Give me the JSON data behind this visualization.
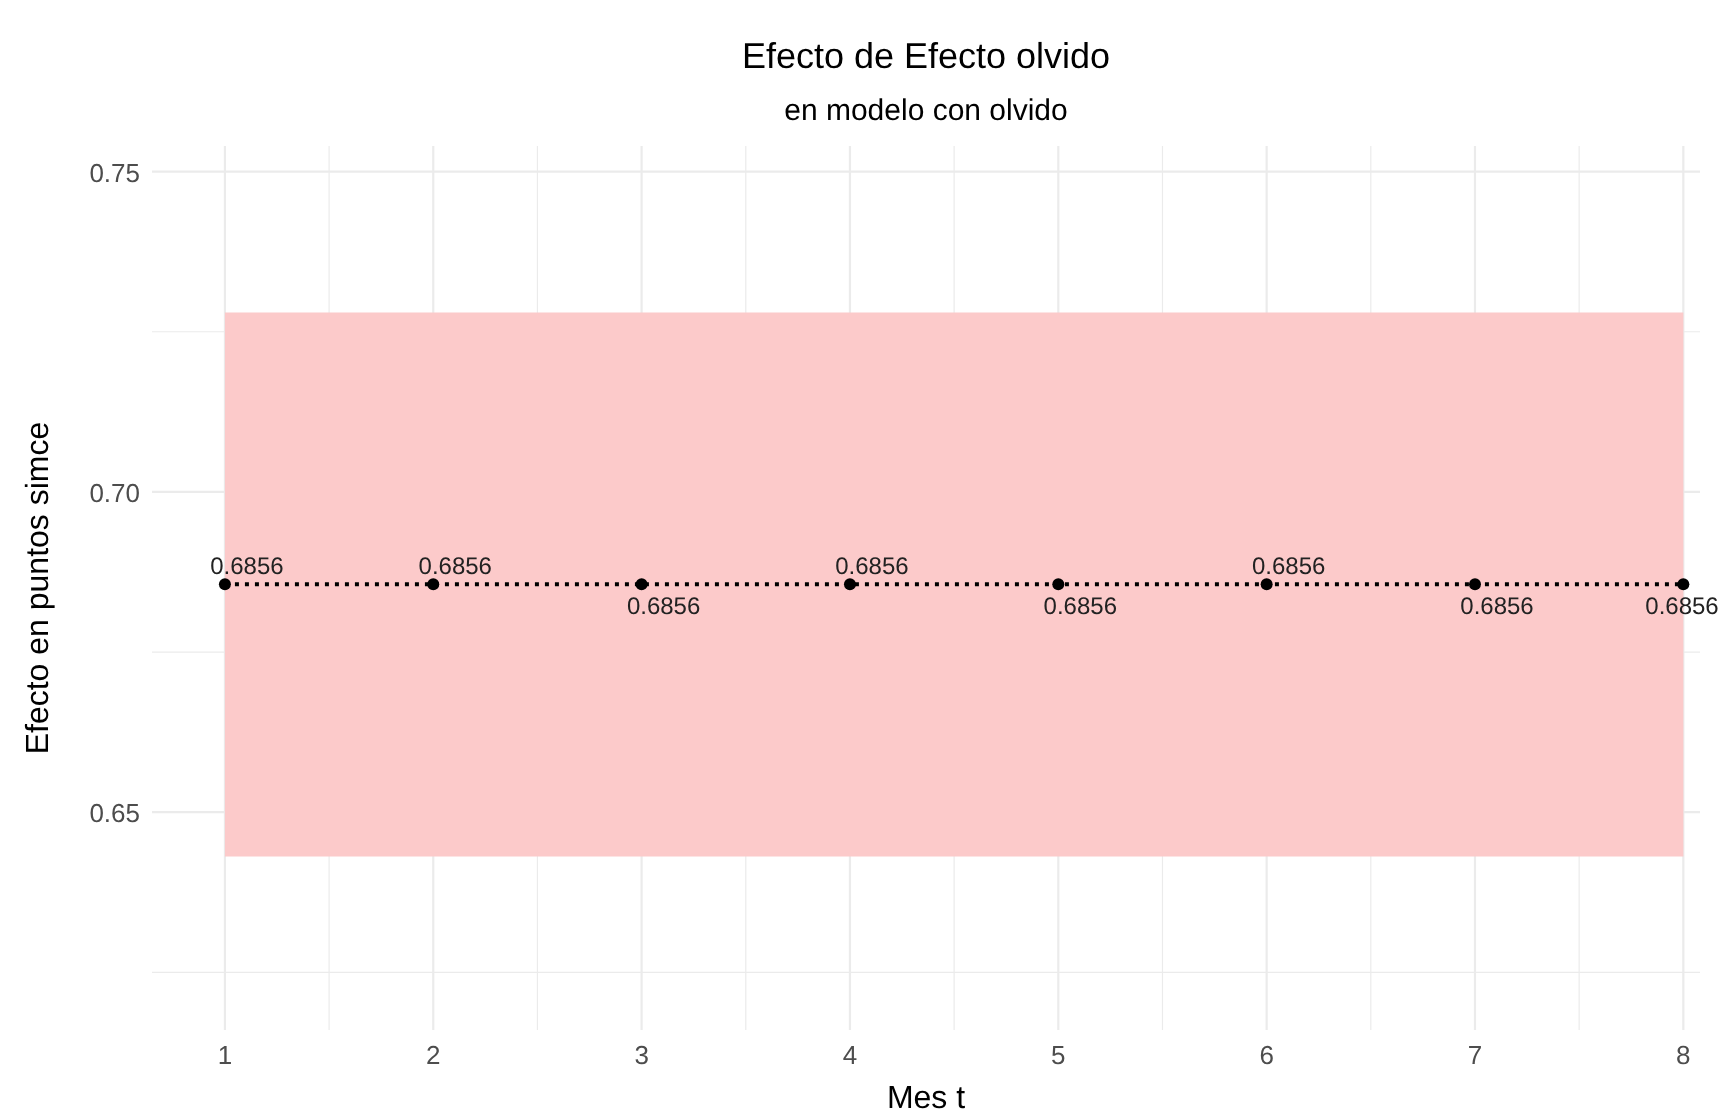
{
  "chart_data": {
    "type": "line",
    "title": "Efecto de Efecto olvido",
    "subtitle": "en modelo con olvido",
    "xlabel": "Mes t",
    "ylabel": "Efecto en puntos simce",
    "x": [
      1,
      2,
      3,
      4,
      5,
      6,
      7,
      8
    ],
    "series": [
      {
        "color": "#000000",
        "values": [
          0.6856,
          0.6856,
          0.6856,
          0.6856,
          0.6856,
          0.6856,
          0.6856,
          0.6856
        ],
        "lower": [
          0.6431,
          0.6431,
          0.6431,
          0.6431,
          0.6431,
          0.6431,
          0.6431,
          0.6431
        ],
        "upper": [
          0.728,
          0.728,
          0.728,
          0.728,
          0.728,
          0.728,
          0.728,
          0.728
        ]
      }
    ],
    "data_labels": true,
    "marker": "circle",
    "line_style": "dotted",
    "grid": true,
    "xlim": [
      0.65,
      8.08
    ],
    "xticks": [
      1,
      {
        "value": 1.5,
        "label": null
      },
      2,
      {
        "value": 2.5,
        "label": null
      },
      3,
      {
        "value": 3.5,
        "label": null
      },
      4,
      {
        "value": 4.5,
        "label": null
      },
      5,
      {
        "value": 5.5,
        "label": null
      },
      6,
      {
        "value": 6.5,
        "label": null
      },
      7,
      {
        "value": 7.5,
        "label": null
      },
      8
    ],
    "ylim": [
      0.616,
      0.754
    ],
    "yticks": [
      {
        "value": 0.625,
        "label": null
      },
      {
        "value": 0.65,
        "label": "0.65"
      },
      {
        "value": 0.675,
        "label": null
      },
      {
        "value": 0.7,
        "label": "0.70"
      },
      {
        "value": 0.725,
        "label": null
      },
      {
        "value": 0.75,
        "label": "0.75"
      }
    ]
  }
}
